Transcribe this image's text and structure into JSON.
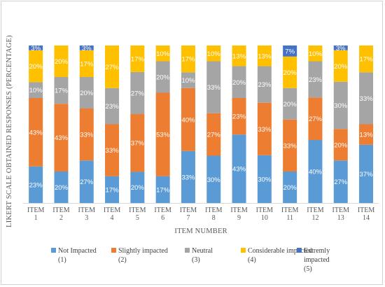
{
  "chart_data": {
    "type": "bar",
    "stacked": true,
    "normalized": true,
    "xlabel": "ITEM NUMBER",
    "ylabel": "LIKERT SCALE OBTAINED RESPONSES (PERCENTAGE)",
    "categories": [
      [
        "ITEM",
        "1"
      ],
      [
        "ITEM",
        "2"
      ],
      [
        "ITEM",
        "3"
      ],
      [
        "ITEM",
        "4"
      ],
      [
        "ITEM",
        "5"
      ],
      [
        "ITEM",
        "6"
      ],
      [
        "ITEM",
        "7"
      ],
      [
        "ITEM",
        "8"
      ],
      [
        "ITEM",
        "9"
      ],
      [
        "ITEM",
        "10"
      ],
      [
        "ITEM",
        "11"
      ],
      [
        "ITEM",
        "12"
      ],
      [
        "ITEM",
        "13"
      ],
      [
        "ITEM",
        "14"
      ]
    ],
    "series": [
      {
        "name": [
          "Not Impacted",
          "(1)"
        ],
        "color": "#5B9BD5",
        "values": [
          23,
          20,
          27,
          17,
          20,
          17,
          33,
          30,
          43,
          30,
          20,
          40,
          27,
          37
        ]
      },
      {
        "name": [
          "Slightly impacted",
          "(2)"
        ],
        "color": "#ED7D31",
        "values": [
          43,
          43,
          33,
          33,
          37,
          53,
          40,
          27,
          23,
          33,
          33,
          27,
          20,
          13
        ]
      },
      {
        "name": [
          "Neutral",
          "(3)"
        ],
        "color": "#A5A5A5",
        "values": [
          10,
          17,
          20,
          23,
          27,
          20,
          10,
          33,
          20,
          23,
          20,
          23,
          30,
          33
        ]
      },
      {
        "name": [
          "Considerable impacted",
          "(4)"
        ],
        "color": "#FFC000",
        "values": [
          20,
          20,
          17,
          27,
          17,
          10,
          17,
          10,
          13,
          13,
          20,
          10,
          20,
          17
        ]
      },
      {
        "name": [
          "Extremly",
          "impacted",
          "(5)"
        ],
        "color": "#4472C4",
        "values": [
          3,
          0,
          3,
          0,
          0,
          0,
          0,
          0,
          0,
          0,
          7,
          0,
          3,
          0
        ]
      }
    ],
    "value_suffix": "%",
    "grid": false,
    "legend_position": "bottom"
  }
}
